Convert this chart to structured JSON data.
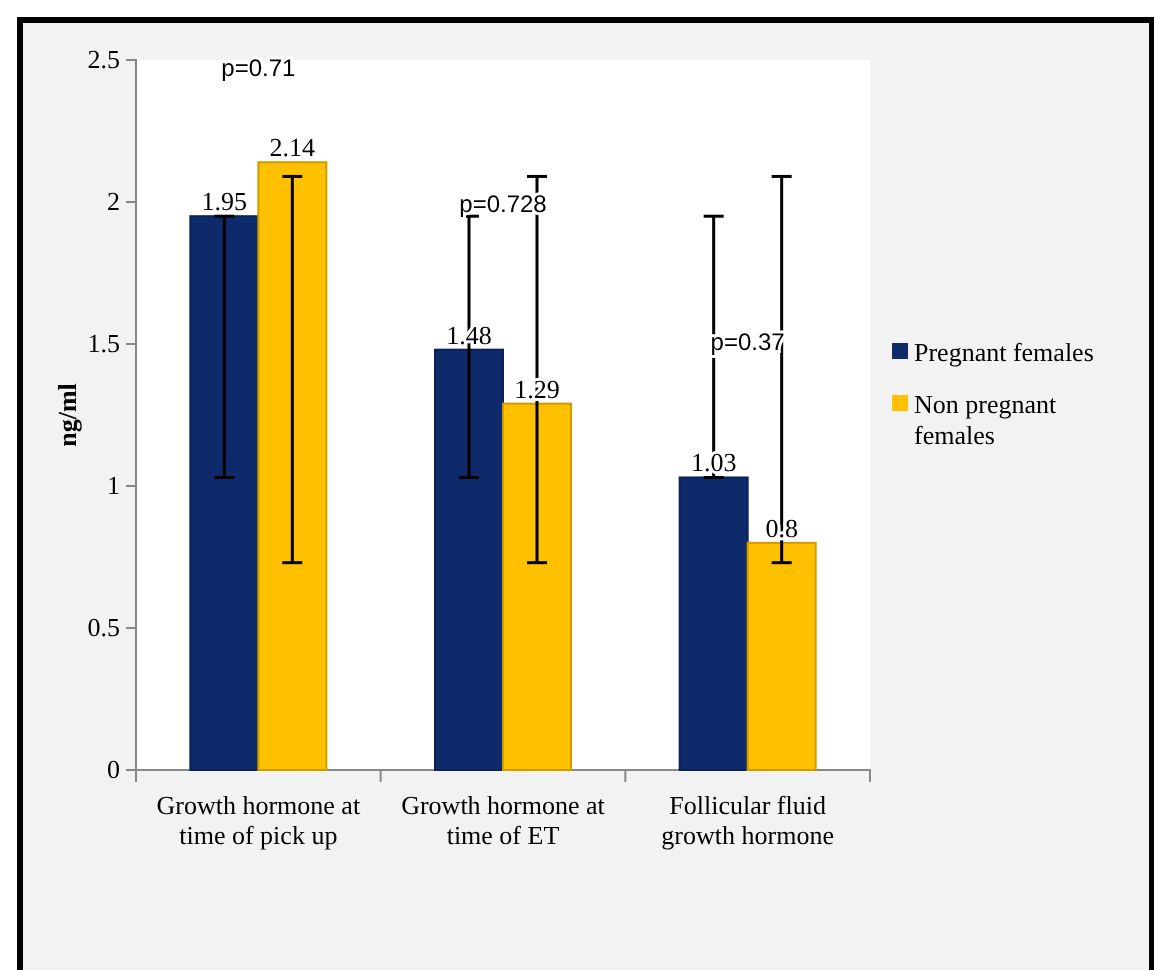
{
  "chart_data": {
    "type": "bar",
    "ylabel": "ng/ml",
    "categories": [
      "Growth hormone at time of pick up",
      "Growth hormone at time of ET",
      "Follicular fluid growth hormone"
    ],
    "series": [
      {
        "name": "Pregnant females",
        "color": "#0e2a6b",
        "values": [
          1.95,
          1.48,
          1.03
        ],
        "errors": [
          [
            1.03,
            1.95
          ],
          [
            1.03,
            1.95
          ],
          [
            1.03,
            1.95
          ]
        ]
      },
      {
        "name": "Non pregnant females",
        "color": "#ffc000",
        "values": [
          2.14,
          1.29,
          0.8
        ],
        "errors": [
          [
            0.73,
            2.09
          ],
          [
            0.73,
            2.09
          ],
          [
            0.73,
            2.09
          ]
        ]
      }
    ],
    "ylim": [
      0,
      2.5
    ],
    "yticks": [
      0,
      0.5,
      1,
      1.5,
      2,
      2.5
    ],
    "data_labels": true,
    "legend": "right",
    "grid": false,
    "annotations": [
      "p=0.71",
      "p=0.728",
      "p=0.37"
    ]
  }
}
